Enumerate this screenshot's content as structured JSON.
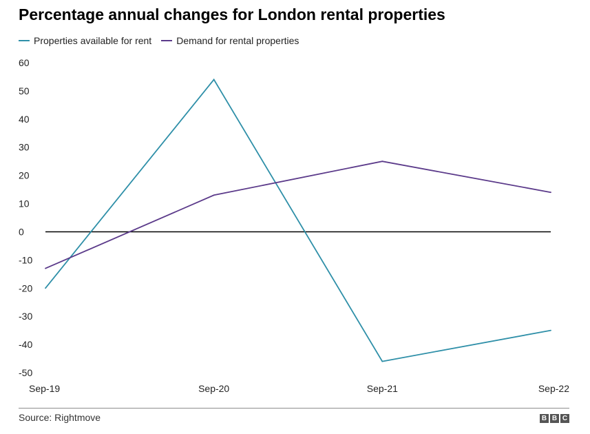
{
  "title": "Percentage annual changes for London rental properties",
  "source": "Source: Rightmove",
  "logo": {
    "letters": [
      "B",
      "B",
      "C"
    ]
  },
  "chart_data": {
    "type": "line",
    "title": "Percentage annual changes for London rental properties",
    "xlabel": "",
    "ylabel": "",
    "categories": [
      "Sep-19",
      "Sep-20",
      "Sep-21",
      "Sep-22"
    ],
    "y_ticks": [
      60,
      50,
      40,
      30,
      20,
      10,
      0,
      -10,
      -20,
      -30,
      -40,
      -50
    ],
    "ylim": [
      -50,
      60
    ],
    "grid": false,
    "legend_position": "top-left",
    "zero_line": true,
    "series": [
      {
        "name": "Properties available for rent",
        "color": "#2e8fa8",
        "values": [
          -20,
          54,
          -46,
          -35
        ]
      },
      {
        "name": "Demand for rental properties",
        "color": "#5b3a8a",
        "values": [
          -13,
          13,
          25,
          14
        ]
      }
    ]
  }
}
